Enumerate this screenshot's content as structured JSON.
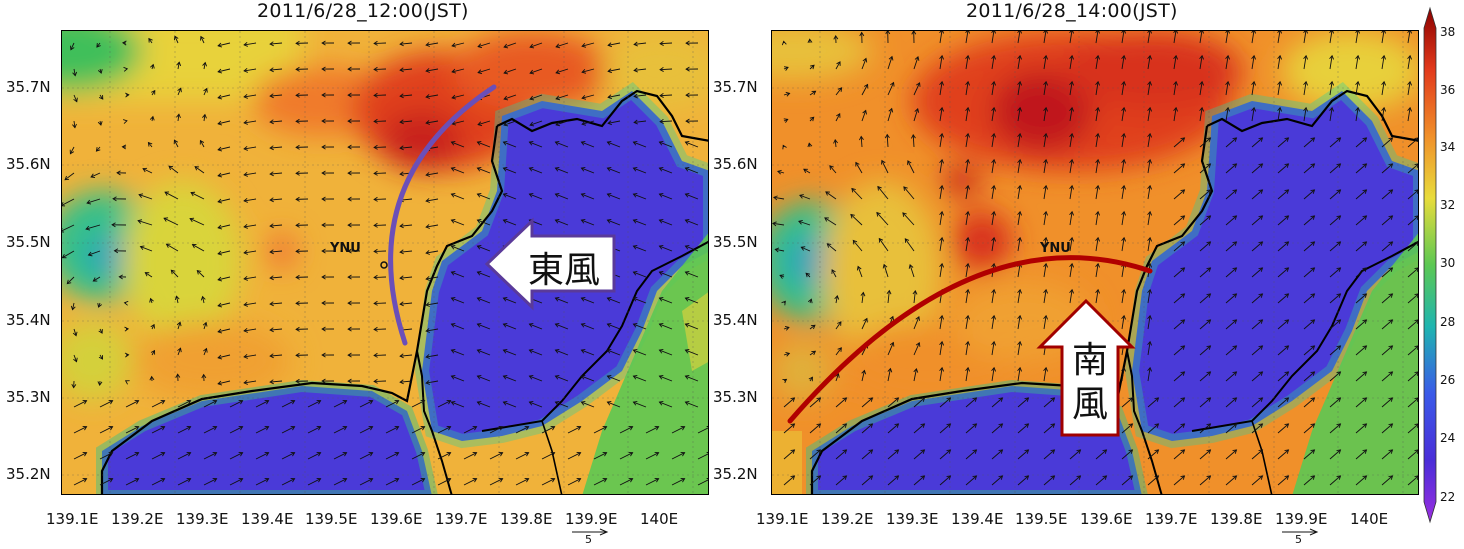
{
  "panels": [
    {
      "title": "2011/6/28_12:00(JST)",
      "station": "YNU",
      "callout": "東風"
    },
    {
      "title": "2011/6/28_14:00(JST)",
      "station": "YNU",
      "callout_chars": [
        "南",
        "風"
      ]
    }
  ],
  "lat_labels": [
    "35.7N",
    "35.6N",
    "35.5N",
    "35.4N",
    "35.3N",
    "35.2N"
  ],
  "lon_labels": [
    "139.1E",
    "139.2E",
    "139.3E",
    "139.4E",
    "139.5E",
    "139.6E",
    "139.7E",
    "139.8E",
    "139.9E",
    "140E"
  ],
  "vector_scale": "5",
  "colorbar": {
    "ticks": [
      "38",
      "36",
      "34",
      "32",
      "30",
      "28",
      "26",
      "24",
      "22"
    ],
    "colors": [
      "#8b0000",
      "#e23a1c",
      "#f0902a",
      "#e8dc3c",
      "#5cc853",
      "#1fb5b0",
      "#3a5ae8",
      "#4a2ed8",
      "#9a2ee0"
    ]
  },
  "colors": {
    "arc_left": "#6b4fb8",
    "arc_right": "#b00000",
    "arrow_left_stroke": "#5a3a9a",
    "arrow_right_stroke": "#a00000"
  }
}
